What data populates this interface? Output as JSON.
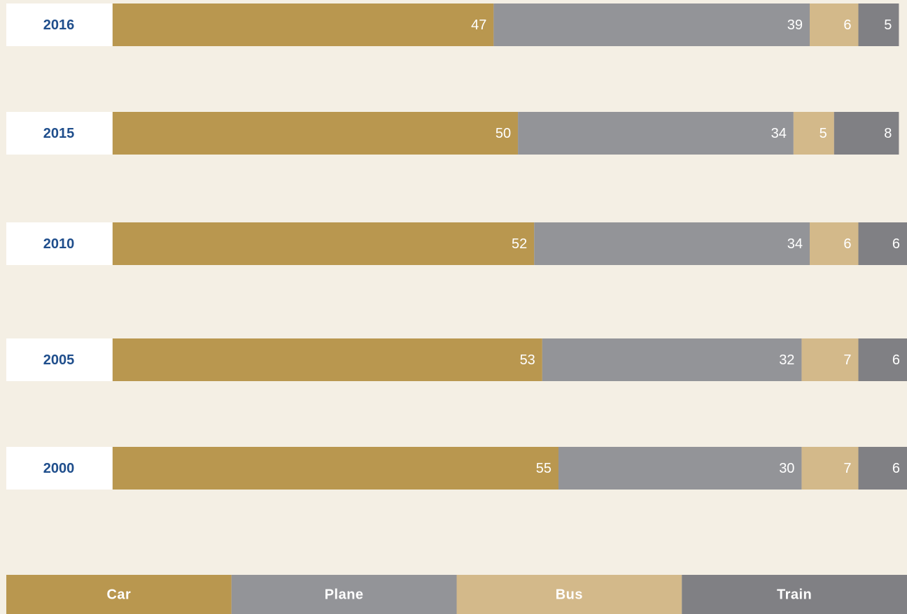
{
  "chart_data": {
    "type": "stacked-bar-horizontal",
    "categories": [
      "2016",
      "2015",
      "2010",
      "2005",
      "2000"
    ],
    "series": [
      {
        "name": "Car",
        "color": "#b9974f",
        "values": [
          47,
          50,
          52,
          53,
          55
        ]
      },
      {
        "name": "Plane",
        "color": "#939498",
        "values": [
          39,
          34,
          34,
          32,
          30
        ]
      },
      {
        "name": "Bus",
        "color": "#d3b98a",
        "values": [
          6,
          5,
          6,
          7,
          7
        ]
      },
      {
        "name": "Train",
        "color": "#808084",
        "values": [
          5,
          8,
          6,
          6,
          6
        ]
      }
    ],
    "legend": "bottom"
  }
}
